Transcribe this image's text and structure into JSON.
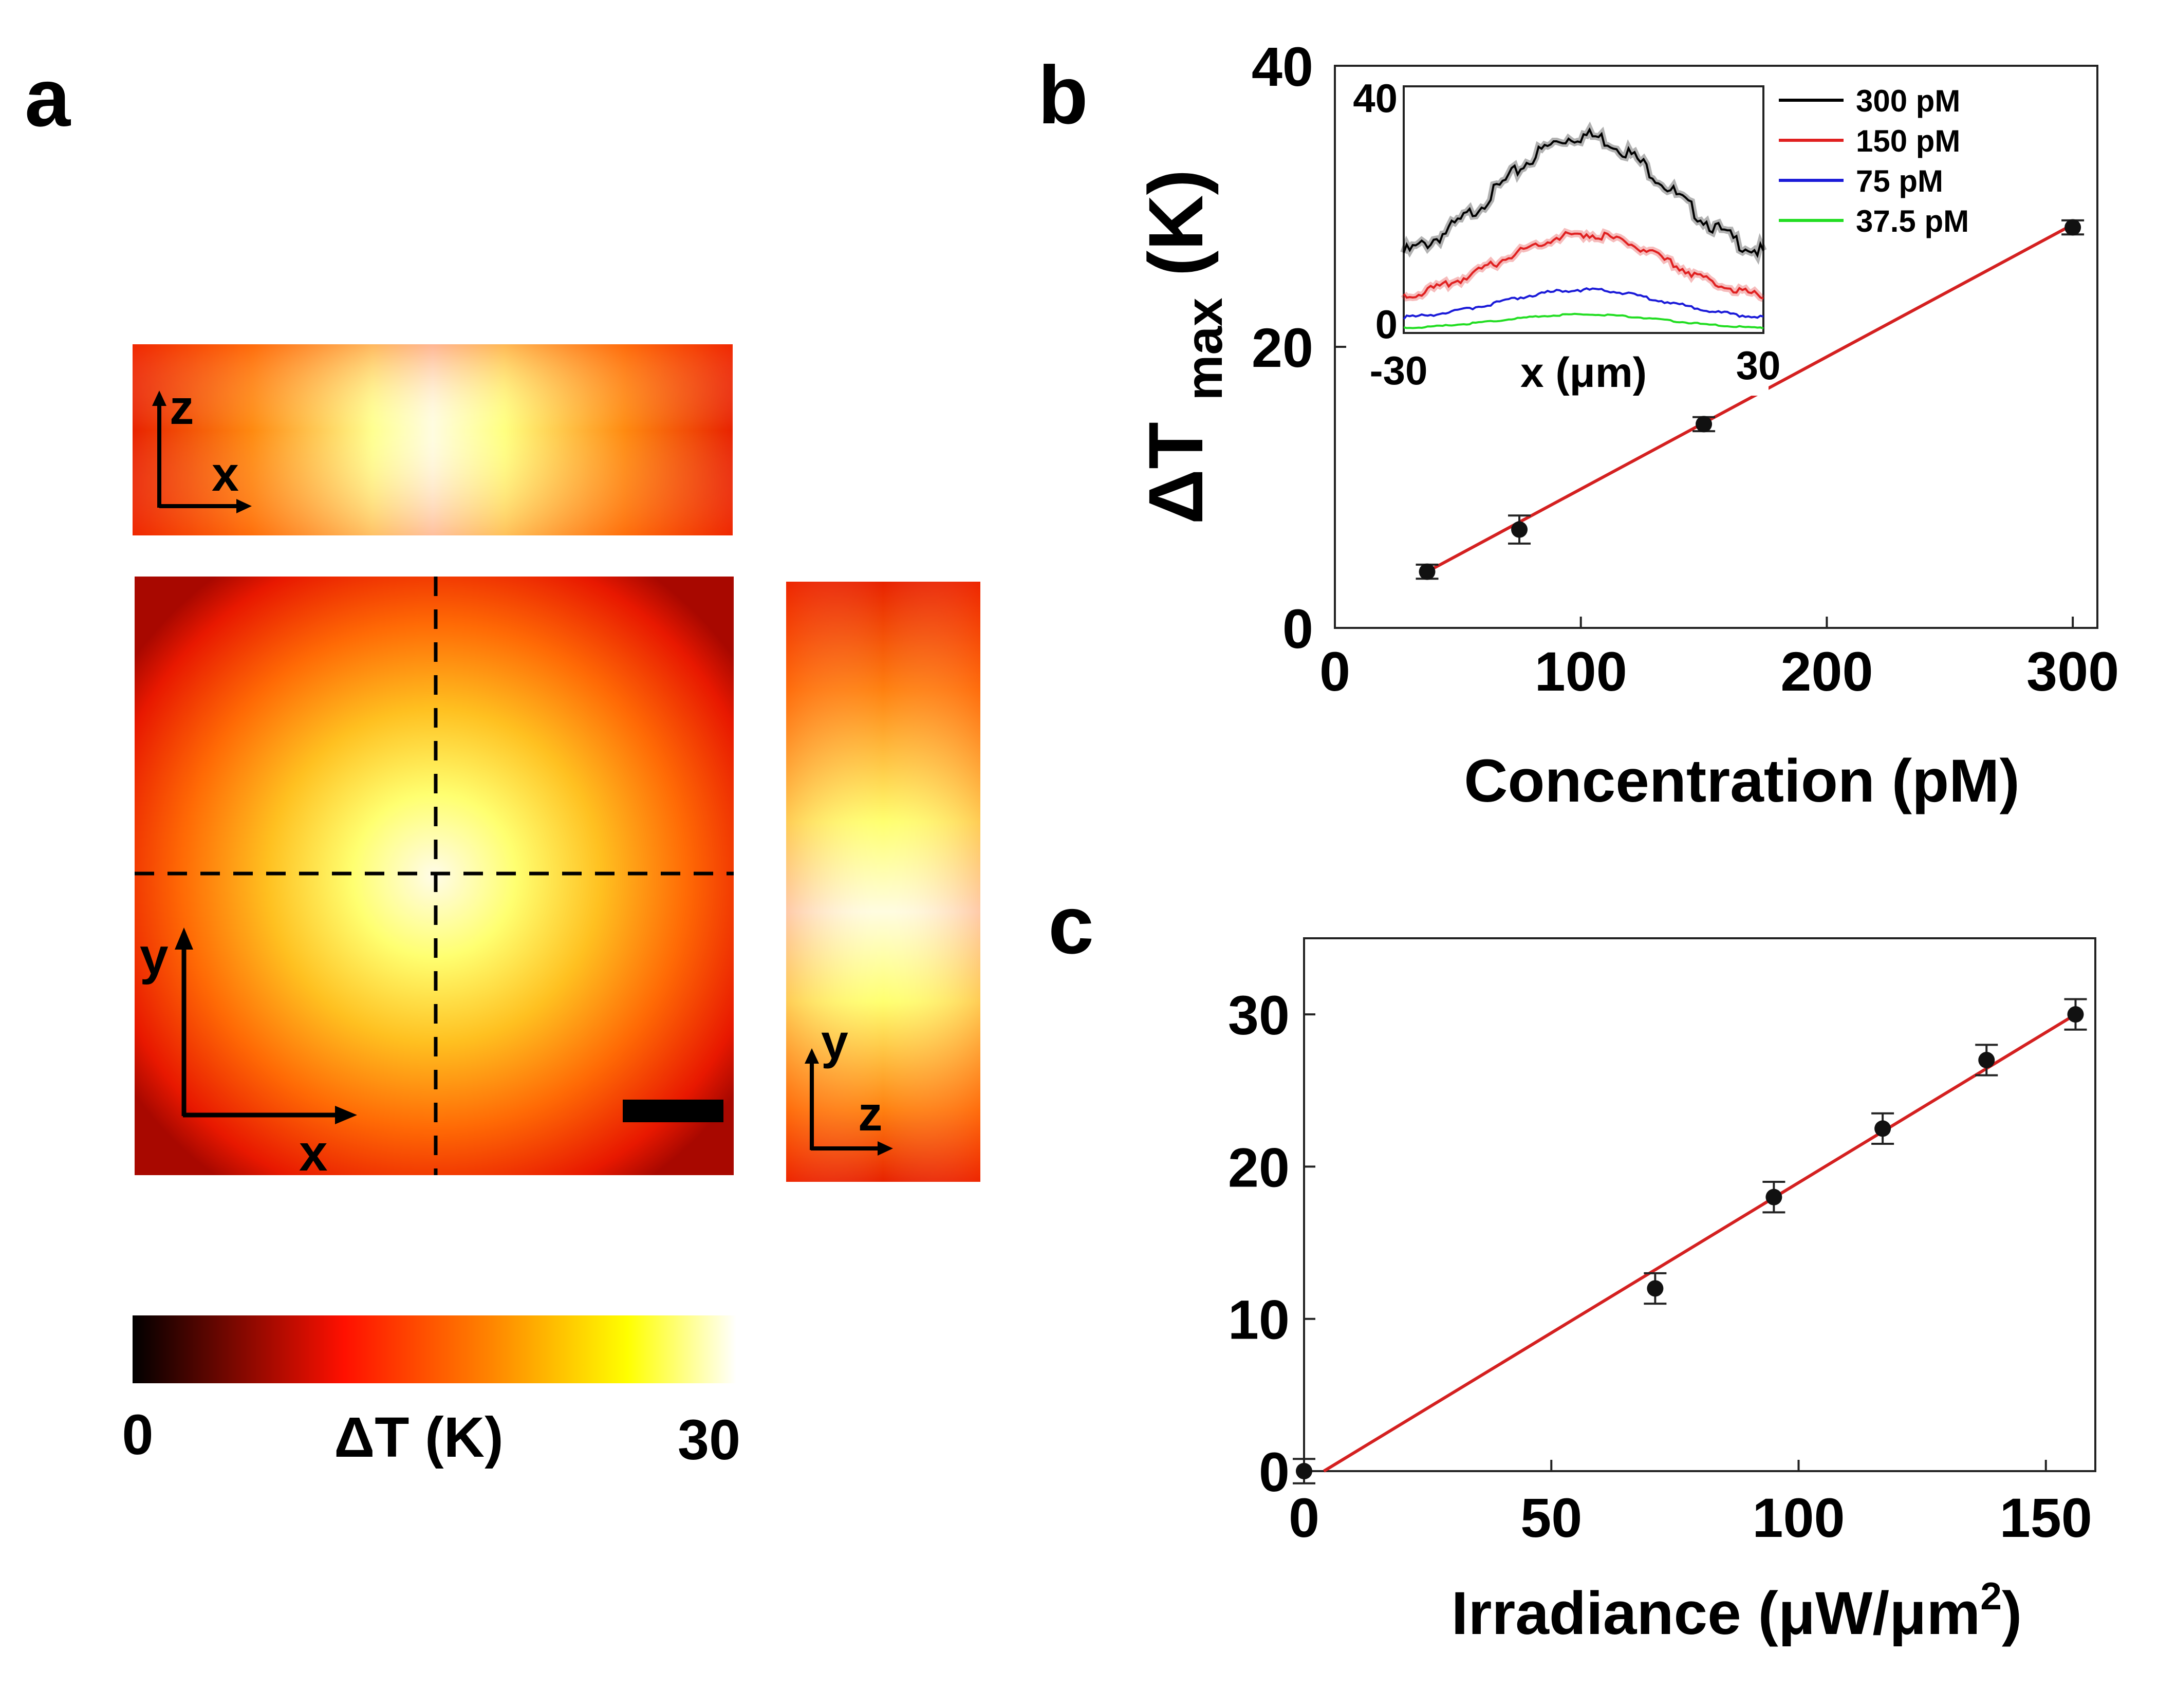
{
  "panel_labels": {
    "a": "a",
    "b": "b",
    "c": "c"
  },
  "panel_a": {
    "xz_axes": {
      "vertical": "z",
      "horizontal": "x"
    },
    "xy_axes": {
      "vertical": "y",
      "horizontal": "x"
    },
    "yz_axes": {
      "vertical": "y",
      "horizontal": "z"
    },
    "colorbar": {
      "min_label": "0",
      "max_label": "30",
      "title": "ΔT (K)",
      "min": 0,
      "max": 30,
      "colors": [
        "#000000",
        "#ff0000",
        "#ff8800",
        "#ffff00",
        "#ffffff"
      ]
    }
  },
  "chart_data": [
    {
      "type": "scatter",
      "panel": "b",
      "title": "",
      "xlabel": "Concentration (pM)",
      "ylabel": "ΔT",
      "ylabel_sub": "max",
      "ylabel_unit": "(K)",
      "xlim": [
        0,
        310
      ],
      "ylim": [
        0,
        40
      ],
      "xticks": [
        0,
        100,
        200,
        300
      ],
      "yticks": [
        0,
        20,
        40
      ],
      "series": [
        {
          "name": "data",
          "x": [
            37.5,
            75,
            150,
            300
          ],
          "y": [
            4,
            7,
            14.5,
            28.5
          ],
          "err": [
            0.5,
            1.0,
            0.5,
            0.5
          ]
        },
        {
          "name": "linear fit",
          "type": "line",
          "x": [
            37.5,
            300
          ],
          "y": [
            4,
            28.7
          ],
          "color": "#d42020"
        }
      ],
      "inset": {
        "type": "line",
        "xlabel": "x (μm)",
        "xlim": [
          -30,
          30
        ],
        "ylim": [
          0,
          40
        ],
        "xtick_labels": [
          "-30",
          "30"
        ],
        "ytick_labels": [
          "0",
          "40"
        ],
        "series": [
          {
            "name": "300 pM",
            "color": "#000000",
            "peak": 32,
            "edge": 13
          },
          {
            "name": "150 pM",
            "color": "#e02020",
            "peak": 16,
            "edge": 6
          },
          {
            "name": "75  pM",
            "color": "#1a1ad8",
            "peak": 7,
            "edge": 2.5
          },
          {
            "name": "37.5 pM",
            "color": "#22dd22",
            "peak": 3,
            "edge": 0.8
          }
        ]
      }
    },
    {
      "type": "scatter",
      "panel": "c",
      "title": "",
      "xlabel": "Irradiance",
      "xlabel_unit": "(μW/μm",
      "xlabel_sup": "2",
      "xlabel_close": ")",
      "ylabel": "",
      "xlim": [
        0,
        160
      ],
      "ylim": [
        0,
        35
      ],
      "xticks": [
        0,
        50,
        100,
        150
      ],
      "yticks": [
        0,
        10,
        20,
        30
      ],
      "series": [
        {
          "name": "data",
          "x": [
            0,
            71,
            95,
            117,
            138,
            156
          ],
          "y": [
            0,
            12,
            18,
            22.5,
            27,
            30
          ],
          "err": [
            0.8,
            1.0,
            1.0,
            1.0,
            1.0,
            1.0
          ]
        },
        {
          "name": "linear fit",
          "type": "line",
          "x": [
            4,
            156
          ],
          "y": [
            0,
            30
          ],
          "color": "#d42020"
        }
      ]
    }
  ]
}
